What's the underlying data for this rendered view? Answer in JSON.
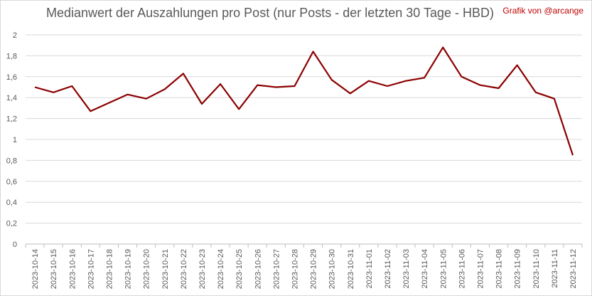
{
  "chart_data": {
    "type": "line",
    "title": "Medianwert der Auszahlungen pro Post (nur Posts - der letzten 30 Tage - HBD)",
    "credit": "Grafik von @arcange",
    "ylim": [
      0,
      2
    ],
    "yticks": [
      "0",
      "0,2",
      "0,4",
      "0,6",
      "0,8",
      "1",
      "1,2",
      "1,4",
      "1,6",
      "1,8",
      "2"
    ],
    "ytick_values": [
      0,
      0.2,
      0.4,
      0.6,
      0.8,
      1,
      1.2,
      1.4,
      1.6,
      1.8,
      2
    ],
    "grid": true,
    "line_color": "#8b0000",
    "categories": [
      "2023-10-14",
      "2023-10-15",
      "2023-10-16",
      "2023-10-17",
      "2023-10-18",
      "2023-10-19",
      "2023-10-20",
      "2023-10-21",
      "2023-10-22",
      "2023-10-23",
      "2023-10-24",
      "2023-10-25",
      "2023-10-26",
      "2023-10-27",
      "2023-10-28",
      "2023-10-29",
      "2023-10-30",
      "2023-10-31",
      "2023-11-01",
      "2023-11-02",
      "2023-11-03",
      "2023-11-04",
      "2023-11-05",
      "2023-11-06",
      "2023-11-07",
      "2023-11-08",
      "2023-11-09",
      "2023-11-10",
      "2023-11-11",
      "2023-11-12"
    ],
    "series": [
      {
        "values": [
          1.5,
          1.45,
          1.51,
          1.27,
          1.35,
          1.43,
          1.39,
          1.48,
          1.63,
          1.34,
          1.53,
          1.29,
          1.52,
          1.5,
          1.51,
          1.84,
          1.57,
          1.44,
          1.56,
          1.51,
          1.56,
          1.59,
          1.88,
          1.6,
          1.52,
          1.49,
          1.71,
          1.45,
          1.39,
          0.85
        ]
      }
    ]
  }
}
